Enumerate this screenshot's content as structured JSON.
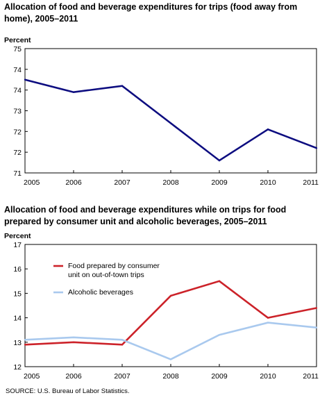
{
  "source": "SOURCE: U.S. Bureau of Labor Statistics.",
  "chart_data": [
    {
      "type": "line",
      "title": "Allocation of food and beverage expenditures for trips (food away from home), 2005–2011",
      "ylabel": "Percent",
      "xlabel": "",
      "x": [
        "2005",
        "2006",
        "2007",
        "2008",
        "2009",
        "2010",
        "2011"
      ],
      "ylim": [
        71,
        75
      ],
      "yticks": [
        "71",
        "72",
        "72",
        "73",
        "74",
        "74",
        "75"
      ],
      "grid": false,
      "series": [
        {
          "values": [
            74.0,
            73.6,
            73.8,
            72.6,
            71.4,
            72.4,
            71.8
          ],
          "color": "#0d0d80"
        }
      ]
    },
    {
      "type": "line",
      "title": "Allocation of food and beverage expenditures while on trips for food prepared by consumer unit and alcoholic beverages, 2005–2011",
      "ylabel": "Percent",
      "xlabel": "",
      "x": [
        "2005",
        "2006",
        "2007",
        "2008",
        "2009",
        "2010",
        "2011"
      ],
      "ylim": [
        12,
        17
      ],
      "yticks": [
        "12",
        "13",
        "14",
        "15",
        "16",
        "17"
      ],
      "grid": false,
      "legend_position": "top-left",
      "series": [
        {
          "name": "Food prepared by consumer unit on out-of-town trips",
          "legend_lines": [
            "Food prepared by consumer",
            "unit on out-of-town trips"
          ],
          "values": [
            12.9,
            13.0,
            12.9,
            14.9,
            15.5,
            14.0,
            14.4
          ],
          "color": "#cc2229"
        },
        {
          "name": "Alcoholic beverages",
          "legend_lines": [
            "Alcoholic beverages"
          ],
          "values": [
            13.1,
            13.2,
            13.1,
            12.3,
            13.3,
            13.8,
            13.6
          ],
          "color": "#a9c9ee"
        }
      ]
    }
  ]
}
